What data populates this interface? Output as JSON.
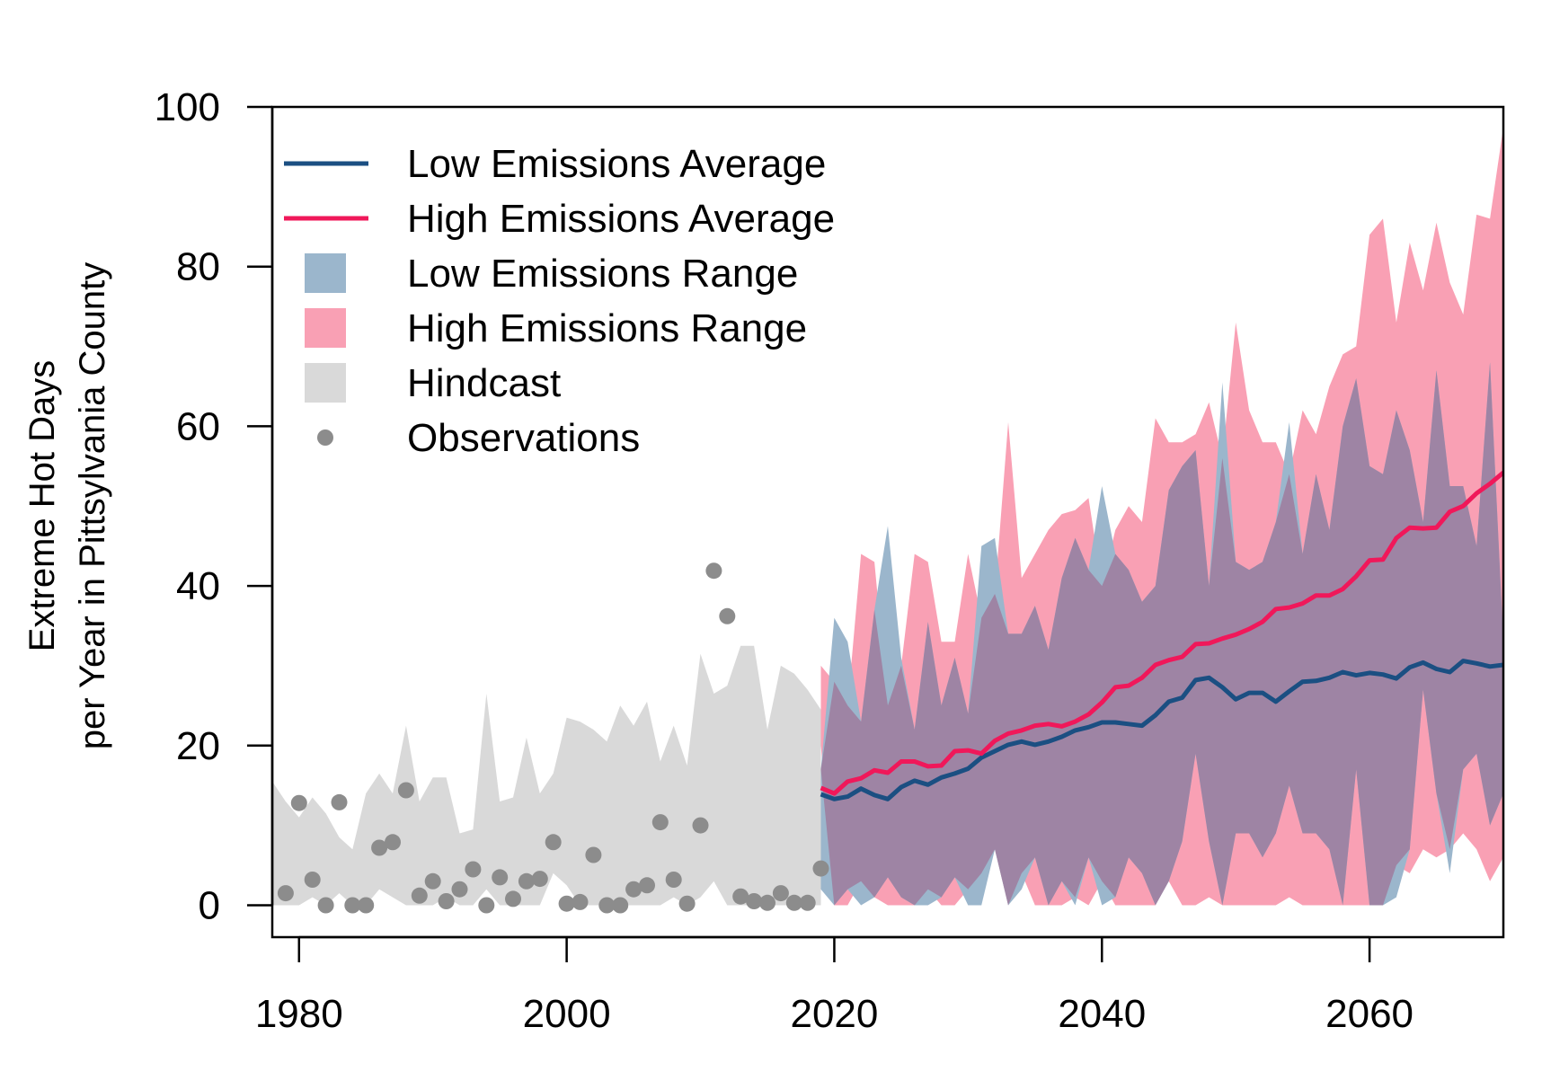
{
  "chart_data": {
    "type": "area",
    "title": "",
    "xlabel": "",
    "ylabel": [
      "Extreme Hot Days",
      "per Year in Pittsylvania County"
    ],
    "xlim": [
      1978,
      2070
    ],
    "ylim": [
      -4,
      100
    ],
    "xticks": [
      1980,
      2000,
      2020,
      2040,
      2060
    ],
    "yticks": [
      0,
      20,
      40,
      60,
      80,
      100
    ],
    "grid": false,
    "legend_position": "top-left",
    "colors": {
      "low_avg": "#1b4f82",
      "high_avg": "#f0185a",
      "low_range": "#9bb6cc",
      "high_range": "#f9a0b4",
      "overlap": "#9e84a4",
      "hindcast": "#d9d9d9",
      "observations": "#8c8c8c"
    },
    "legend": [
      {
        "label": "Low Emissions Average",
        "kind": "line",
        "color": "#1b4f82"
      },
      {
        "label": "High Emissions Average",
        "kind": "line",
        "color": "#f0185a"
      },
      {
        "label": "Low Emissions Range",
        "kind": "fill",
        "color": "#9bb6cc"
      },
      {
        "label": "High Emissions Range",
        "kind": "fill",
        "color": "#f9a0b4"
      },
      {
        "label": "Hindcast",
        "kind": "fill",
        "color": "#d9d9d9"
      },
      {
        "label": "Observations",
        "kind": "point",
        "color": "#8c8c8c"
      }
    ],
    "hindcast": {
      "x": [
        1978,
        1979,
        1980,
        1981,
        1982,
        1983,
        1984,
        1985,
        1986,
        1987,
        1988,
        1989,
        1990,
        1991,
        1992,
        1993,
        1994,
        1995,
        1996,
        1997,
        1998,
        1999,
        2000,
        2001,
        2002,
        2003,
        2004,
        2005,
        2006,
        2007,
        2008,
        2009,
        2010,
        2011,
        2012,
        2013,
        2014,
        2015,
        2016,
        2017,
        2018,
        2019
      ],
      "upper": [
        15.5,
        13,
        11,
        13.5,
        11.5,
        8.5,
        7,
        14,
        16.5,
        14,
        22.5,
        13,
        16,
        16,
        9,
        9.5,
        26.5,
        13,
        13.5,
        21,
        14,
        16.5,
        23.5,
        23,
        22,
        20.5,
        25,
        22.5,
        25.5,
        18,
        22.5,
        17.5,
        31.5,
        26.5,
        27.5,
        32.5,
        32.5,
        22,
        30,
        29,
        27,
        24.5
      ],
      "lower": [
        0,
        0,
        0,
        1,
        0,
        1.5,
        0,
        0,
        2,
        1,
        0,
        0,
        0,
        1,
        0,
        0,
        2,
        0,
        0,
        0,
        0,
        4,
        2.5,
        0,
        0,
        0,
        0,
        0,
        0,
        0,
        1,
        0,
        1,
        3,
        0,
        0,
        0,
        0,
        0,
        0,
        0,
        0
      ]
    },
    "observations": {
      "x": [
        1979,
        1980,
        1981,
        1982,
        1983,
        1984,
        1985,
        1986,
        1987,
        1988,
        1989,
        1990,
        1991,
        1992,
        1993,
        1994,
        1995,
        1996,
        1997,
        1998,
        1999,
        2000,
        2001,
        2002,
        2003,
        2004,
        2005,
        2006,
        2007,
        2008,
        2009,
        2010,
        2011,
        2012,
        2013,
        2014,
        2015,
        2016,
        2017,
        2018,
        2019
      ],
      "y": [
        1.5,
        12.8,
        3.2,
        0,
        12.9,
        0,
        0,
        7.2,
        7.9,
        14.4,
        1.2,
        3,
        0.5,
        2,
        4.5,
        0,
        3.5,
        0.8,
        3,
        3.3,
        7.9,
        0.2,
        0.4,
        6.3,
        0,
        0,
        2,
        2.5,
        10.4,
        3.2,
        0.2,
        10,
        41.9,
        36.2,
        1.1,
        0.5,
        0.3,
        1.5,
        0.3,
        0.3,
        4.6
      ]
    },
    "series": [
      {
        "name": "Low Emissions Average",
        "x": [
          2019,
          2020,
          2021,
          2022,
          2023,
          2024,
          2025,
          2026,
          2027,
          2028,
          2029,
          2030,
          2031,
          2032,
          2033,
          2034,
          2035,
          2036,
          2037,
          2038,
          2039,
          2040,
          2041,
          2042,
          2043,
          2044,
          2045,
          2046,
          2047,
          2048,
          2049,
          2050,
          2051,
          2052,
          2053,
          2054,
          2055,
          2056,
          2057,
          2058,
          2059,
          2060,
          2061,
          2062,
          2063,
          2064,
          2065,
          2066,
          2067,
          2068,
          2069,
          2070
        ],
        "y": [
          13.9,
          13.3,
          13.6,
          14.6,
          13.8,
          13.3,
          14.8,
          15.6,
          15.1,
          16,
          16.5,
          17.1,
          18.5,
          19.3,
          20.1,
          20.5,
          20.1,
          20.5,
          21.1,
          21.9,
          22.3,
          22.9,
          22.9,
          22.7,
          22.5,
          23.8,
          25.5,
          26,
          28.2,
          28.5,
          27.3,
          25.8,
          26.6,
          26.6,
          25.5,
          26.8,
          28,
          28.1,
          28.5,
          29.2,
          28.8,
          29.1,
          28.9,
          28.4,
          29.8,
          30.4,
          29.6,
          29.2,
          30.6,
          30.3,
          29.9,
          30.1
        ]
      },
      {
        "name": "High Emissions Average",
        "x": [
          2019,
          2020,
          2021,
          2022,
          2023,
          2024,
          2025,
          2026,
          2027,
          2028,
          2029,
          2030,
          2031,
          2032,
          2033,
          2034,
          2035,
          2036,
          2037,
          2038,
          2039,
          2040,
          2041,
          2042,
          2043,
          2044,
          2045,
          2046,
          2047,
          2048,
          2049,
          2050,
          2051,
          2052,
          2053,
          2054,
          2055,
          2056,
          2057,
          2058,
          2059,
          2060,
          2061,
          2062,
          2063,
          2064,
          2065,
          2066,
          2067,
          2068,
          2069,
          2070
        ],
        "y": [
          14.7,
          14,
          15.5,
          15.9,
          16.9,
          16.6,
          18,
          18,
          17.4,
          17.5,
          19.3,
          19.4,
          19,
          20.6,
          21.5,
          21.9,
          22.5,
          22.7,
          22.4,
          23,
          23.9,
          25.4,
          27.3,
          27.5,
          28.5,
          30.1,
          30.7,
          31.1,
          32.7,
          32.8,
          33.4,
          33.9,
          34.6,
          35.5,
          37.1,
          37.3,
          37.8,
          38.8,
          38.8,
          39.6,
          41.2,
          43.2,
          43.3,
          46,
          47.3,
          47.2,
          47.3,
          49.3,
          50,
          51.6,
          52.8,
          54.2
        ]
      }
    ],
    "low_range": {
      "x": [
        2019,
        2020,
        2021,
        2022,
        2023,
        2024,
        2025,
        2026,
        2027,
        2028,
        2029,
        2030,
        2031,
        2032,
        2033,
        2034,
        2035,
        2036,
        2037,
        2038,
        2039,
        2040,
        2041,
        2042,
        2043,
        2044,
        2045,
        2046,
        2047,
        2048,
        2049,
        2050,
        2051,
        2052,
        2053,
        2054,
        2055,
        2056,
        2057,
        2058,
        2059,
        2060,
        2061,
        2062,
        2063,
        2064,
        2065,
        2066,
        2067,
        2068,
        2069,
        2070
      ],
      "upper": [
        17,
        36,
        33,
        23,
        37,
        47.5,
        31,
        22,
        35.5,
        25,
        31,
        24,
        45,
        46,
        34,
        34,
        37.5,
        32,
        41,
        46,
        42,
        52.5,
        44,
        42,
        38,
        40,
        52,
        55,
        57,
        40,
        65.5,
        43,
        42,
        43,
        48,
        60.5,
        44,
        54,
        47,
        60,
        66,
        55,
        54,
        62,
        57,
        48,
        67,
        52.5,
        52.5,
        45,
        68,
        33
      ],
      "lower": [
        2,
        0,
        2,
        0,
        1,
        3.5,
        1,
        0,
        0,
        1,
        3.5,
        0,
        0,
        7,
        0,
        2,
        6,
        0,
        3,
        0,
        6,
        0,
        1,
        6,
        4,
        0,
        3,
        8,
        19,
        8,
        0,
        9,
        9,
        6,
        9,
        15,
        9,
        9,
        7,
        0,
        17,
        0,
        0,
        1,
        7,
        27,
        14,
        4,
        17,
        19,
        10,
        14
      ]
    },
    "high_range": {
      "x": [
        2019,
        2020,
        2021,
        2022,
        2023,
        2024,
        2025,
        2026,
        2027,
        2028,
        2029,
        2030,
        2031,
        2032,
        2033,
        2034,
        2035,
        2036,
        2037,
        2038,
        2039,
        2040,
        2041,
        2042,
        2043,
        2044,
        2045,
        2046,
        2047,
        2048,
        2049,
        2050,
        2051,
        2052,
        2053,
        2054,
        2055,
        2056,
        2057,
        2058,
        2059,
        2060,
        2061,
        2062,
        2063,
        2064,
        2065,
        2066,
        2067,
        2068,
        2069,
        2070
      ],
      "upper": [
        30,
        28,
        25,
        44,
        43,
        25,
        30,
        44,
        43,
        33,
        33,
        44,
        36,
        39,
        60.5,
        41,
        44,
        47,
        49,
        49.5,
        51,
        40,
        47,
        50,
        48,
        61,
        58,
        58,
        59,
        63,
        56,
        73,
        62,
        58,
        58,
        54,
        62,
        59,
        65,
        69,
        70,
        84,
        86,
        73,
        83,
        77,
        85.5,
        78,
        74,
        86.5,
        86,
        97.5
      ],
      "lower": [
        20,
        0,
        0,
        3,
        1,
        0,
        0,
        0,
        2,
        0,
        0,
        2,
        4,
        7,
        0,
        4,
        0,
        0,
        0,
        1,
        0,
        3,
        0,
        0,
        0,
        0,
        3,
        0,
        0,
        1,
        0,
        0,
        0,
        0,
        0,
        1,
        0,
        0,
        0,
        0,
        0,
        0,
        0,
        5,
        4,
        7,
        6,
        7,
        9,
        7,
        3,
        6
      ]
    }
  }
}
